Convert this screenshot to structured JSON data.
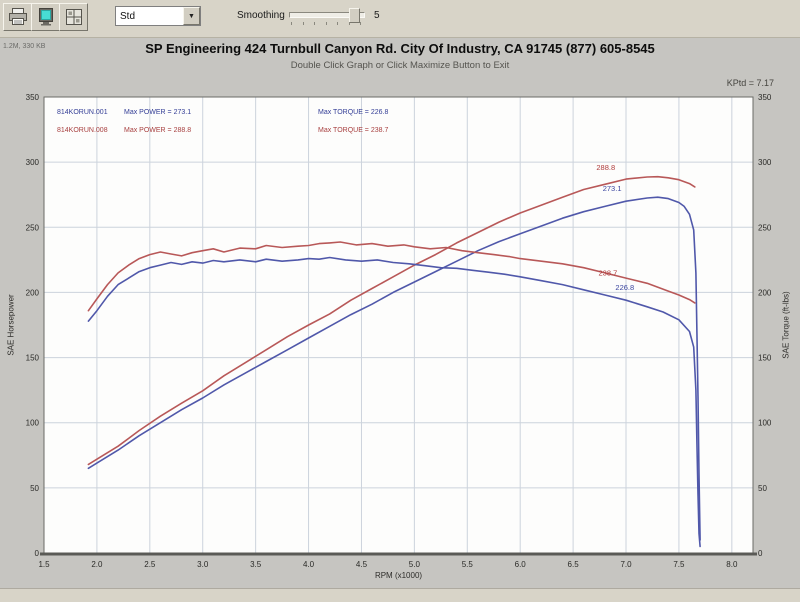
{
  "toolbar": {
    "dropdown_value": "Std",
    "smoothing_label": "Smoothing",
    "smoothing_value": "5",
    "icons": [
      "print-icon",
      "monitor-graph-icon",
      "grid-options-icon"
    ]
  },
  "header": {
    "corner_info": "1.2M, 330 KB",
    "title": "SP Engineering 424 Turnbull Canyon Rd. City Of Industry, CA 91745 (877) 605-8545",
    "subtitle": "Double Click Graph or Click Maximize Button to Exit",
    "corner_right": "KPtd = 7.17"
  },
  "legend": {
    "rows": [
      {
        "file": "814KORUN.001",
        "power": "Max POWER = 273.1",
        "torque": "Max TORQUE = 226.8",
        "color": "#343e96"
      },
      {
        "file": "814KORUN.008",
        "power": "Max POWER = 288.8",
        "torque": "Max TORQUE = 238.7",
        "color": "#a84040"
      }
    ]
  },
  "chart_data": {
    "type": "line",
    "xlabel": "RPM (x1000)",
    "ylabel_left": "SAE Horsepower",
    "ylabel_right": "SAE Torque (ft-lbs)",
    "xlim": [
      1.5,
      8.2
    ],
    "ylim": [
      0,
      350
    ],
    "x_ticks": [
      1.5,
      2.0,
      2.5,
      3.0,
      3.5,
      4.0,
      4.5,
      5.0,
      5.5,
      6.0,
      6.5,
      7.0,
      7.5,
      8.0
    ],
    "y_ticks": [
      0,
      50,
      100,
      150,
      200,
      250,
      300,
      350
    ],
    "grid": true,
    "grid_color": "#ccd3dc",
    "legend_position": "top-left-inside",
    "series": [
      {
        "name": "run-008-horsepower",
        "color": "#b85858",
        "max": 288.8,
        "points": [
          [
            1.92,
            68
          ],
          [
            2.0,
            72
          ],
          [
            2.2,
            82
          ],
          [
            2.4,
            94
          ],
          [
            2.6,
            105
          ],
          [
            2.8,
            115
          ],
          [
            3.0,
            124.5
          ],
          [
            3.2,
            136
          ],
          [
            3.4,
            146
          ],
          [
            3.6,
            156
          ],
          [
            3.8,
            166
          ],
          [
            4.0,
            175
          ],
          [
            4.2,
            183.5
          ],
          [
            4.4,
            194
          ],
          [
            4.6,
            203
          ],
          [
            4.8,
            212
          ],
          [
            5.0,
            221
          ],
          [
            5.2,
            229
          ],
          [
            5.4,
            238
          ],
          [
            5.6,
            246
          ],
          [
            5.8,
            254
          ],
          [
            6.0,
            261
          ],
          [
            6.2,
            267
          ],
          [
            6.4,
            273
          ],
          [
            6.6,
            279
          ],
          [
            6.8,
            283
          ],
          [
            7.0,
            287
          ],
          [
            7.2,
            288.6
          ],
          [
            7.3,
            288.8
          ],
          [
            7.4,
            288
          ],
          [
            7.5,
            286.5
          ],
          [
            7.6,
            283.5
          ],
          [
            7.65,
            281
          ]
        ]
      },
      {
        "name": "run-001-horsepower",
        "color": "#5058aa",
        "max": 273.1,
        "points": [
          [
            1.92,
            65
          ],
          [
            2.0,
            69
          ],
          [
            2.2,
            79
          ],
          [
            2.4,
            90
          ],
          [
            2.6,
            100
          ],
          [
            2.8,
            110
          ],
          [
            3.0,
            119
          ],
          [
            3.2,
            129
          ],
          [
            3.4,
            138
          ],
          [
            3.6,
            147
          ],
          [
            3.8,
            156
          ],
          [
            4.0,
            165
          ],
          [
            4.2,
            174
          ],
          [
            4.4,
            183
          ],
          [
            4.6,
            191
          ],
          [
            4.8,
            200
          ],
          [
            5.0,
            208
          ],
          [
            5.2,
            216
          ],
          [
            5.4,
            224
          ],
          [
            5.6,
            232
          ],
          [
            5.8,
            239
          ],
          [
            6.0,
            245
          ],
          [
            6.2,
            251
          ],
          [
            6.4,
            257
          ],
          [
            6.6,
            262
          ],
          [
            6.8,
            266
          ],
          [
            7.0,
            270
          ],
          [
            7.2,
            272.5
          ],
          [
            7.3,
            273.1
          ],
          [
            7.4,
            272
          ],
          [
            7.5,
            269
          ],
          [
            7.55,
            266
          ],
          [
            7.6,
            260
          ],
          [
            7.64,
            248
          ],
          [
            7.66,
            215
          ],
          [
            7.67,
            170
          ],
          [
            7.68,
            120
          ],
          [
            7.69,
            60
          ],
          [
            7.7,
            10
          ]
        ]
      },
      {
        "name": "run-008-torque",
        "color": "#b85858",
        "max": 238.7,
        "points": [
          [
            1.92,
            186
          ],
          [
            2.0,
            195
          ],
          [
            2.1,
            206
          ],
          [
            2.2,
            215
          ],
          [
            2.3,
            221
          ],
          [
            2.4,
            226
          ],
          [
            2.5,
            229
          ],
          [
            2.6,
            231
          ],
          [
            2.7,
            229.5
          ],
          [
            2.8,
            228
          ],
          [
            2.9,
            230.5
          ],
          [
            3.0,
            232
          ],
          [
            3.1,
            233.5
          ],
          [
            3.2,
            231
          ],
          [
            3.35,
            234
          ],
          [
            3.5,
            233.5
          ],
          [
            3.6,
            236
          ],
          [
            3.75,
            234.5
          ],
          [
            3.9,
            235.5
          ],
          [
            4.0,
            236
          ],
          [
            4.1,
            237.5
          ],
          [
            4.2,
            238
          ],
          [
            4.3,
            238.7
          ],
          [
            4.45,
            236.5
          ],
          [
            4.6,
            237.5
          ],
          [
            4.75,
            235.5
          ],
          [
            4.9,
            236.5
          ],
          [
            5.0,
            235
          ],
          [
            5.15,
            233.5
          ],
          [
            5.3,
            234.5
          ],
          [
            5.45,
            232
          ],
          [
            5.6,
            230.5
          ],
          [
            5.75,
            229
          ],
          [
            5.9,
            227.5
          ],
          [
            6.0,
            226
          ],
          [
            6.2,
            224
          ],
          [
            6.4,
            222
          ],
          [
            6.6,
            219
          ],
          [
            6.8,
            215
          ],
          [
            7.0,
            211
          ],
          [
            7.2,
            207
          ],
          [
            7.4,
            201
          ],
          [
            7.5,
            198
          ],
          [
            7.6,
            194.5
          ],
          [
            7.65,
            192
          ]
        ]
      },
      {
        "name": "run-001-torque",
        "color": "#5058aa",
        "max": 226.8,
        "points": [
          [
            1.92,
            178
          ],
          [
            2.0,
            186
          ],
          [
            2.1,
            197
          ],
          [
            2.2,
            206
          ],
          [
            2.3,
            211
          ],
          [
            2.4,
            216
          ],
          [
            2.5,
            219
          ],
          [
            2.6,
            221
          ],
          [
            2.7,
            223
          ],
          [
            2.8,
            221.5
          ],
          [
            2.9,
            223.5
          ],
          [
            3.0,
            222.5
          ],
          [
            3.1,
            224.5
          ],
          [
            3.2,
            223.5
          ],
          [
            3.35,
            225
          ],
          [
            3.5,
            223.5
          ],
          [
            3.6,
            225.5
          ],
          [
            3.75,
            224
          ],
          [
            3.9,
            225
          ],
          [
            4.0,
            226
          ],
          [
            4.1,
            225.5
          ],
          [
            4.2,
            226.8
          ],
          [
            4.35,
            225
          ],
          [
            4.5,
            224
          ],
          [
            4.65,
            225
          ],
          [
            4.8,
            223
          ],
          [
            4.95,
            222
          ],
          [
            5.1,
            220.5
          ],
          [
            5.25,
            219
          ],
          [
            5.4,
            218.5
          ],
          [
            5.55,
            217
          ],
          [
            5.7,
            215.5
          ],
          [
            5.85,
            214
          ],
          [
            6.0,
            212
          ],
          [
            6.2,
            209
          ],
          [
            6.4,
            206
          ],
          [
            6.6,
            202
          ],
          [
            6.8,
            198
          ],
          [
            7.0,
            194
          ],
          [
            7.2,
            189
          ],
          [
            7.35,
            185
          ],
          [
            7.5,
            179
          ],
          [
            7.6,
            170
          ],
          [
            7.64,
            158
          ],
          [
            7.66,
            125
          ],
          [
            7.67,
            85
          ],
          [
            7.68,
            45
          ],
          [
            7.69,
            15
          ],
          [
            7.7,
            5
          ]
        ]
      }
    ],
    "annotations": [
      {
        "text": "288.8",
        "x": 6.72,
        "y": 294,
        "color": "#b03c3c"
      },
      {
        "text": "273.1",
        "x": 6.78,
        "y": 278,
        "color": "#3c46a0"
      },
      {
        "text": "238.7",
        "x": 6.74,
        "y": 213,
        "color": "#b03c3c"
      },
      {
        "text": "226.8",
        "x": 6.9,
        "y": 202,
        "color": "#3c46a0"
      }
    ]
  }
}
